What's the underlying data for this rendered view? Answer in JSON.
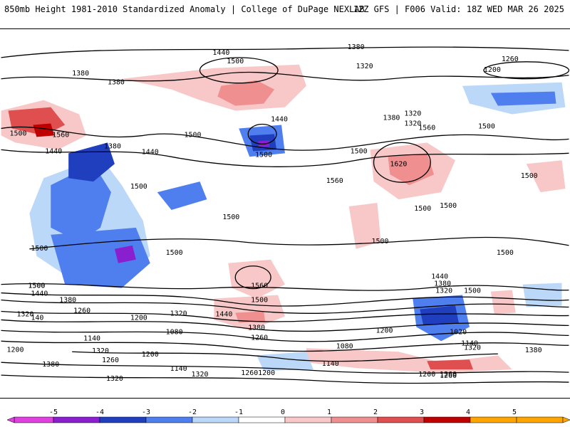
{
  "header": {
    "left": "850mb Height 1981-2010 Standardized Anomaly | College of DuPage NEXLAB",
    "right": "12Z GFS | F006 Valid: 18Z WED MAR 26 2025"
  },
  "map": {
    "contour_labels": [
      "1440",
      "1500",
      "1380",
      "1320",
      "1260",
      "1200",
      "1380",
      "1500",
      "1560",
      "1440",
      "1380",
      "1500",
      "1440",
      "1500",
      "1320",
      "1380",
      "1560",
      "1440",
      "1380",
      "1320",
      "1620",
      "1500",
      "1500",
      "1500",
      "1560",
      "1500",
      "1500",
      "1500",
      "1500",
      "1500",
      "1500",
      "1500",
      "1500",
      "1380",
      "1440",
      "1320",
      "1560",
      "1500",
      "1500",
      "1440",
      "1380",
      "1320",
      "1260",
      "1500",
      "1500",
      "1440",
      "1380",
      "1260",
      "1200",
      "1320",
      "140",
      "1080",
      "1200",
      "1140",
      "1320",
      "1200",
      "1260",
      "1140",
      "1200",
      "1080",
      "1140",
      "1320",
      "1380",
      "1320",
      "1260",
      "1200",
      "1140",
      "1020",
      "1260",
      "1380",
      "1200",
      "1320",
      "1260"
    ],
    "colors": {
      "neg5": "#e040e0",
      "neg4": "#8a1fcf",
      "neg3": "#1f3fbf",
      "neg2": "#4f7fef",
      "neg1": "#bcd8f8",
      "pos1": "#f8c8c8",
      "pos2": "#ef8f8f",
      "pos3": "#df4f4f",
      "pos4": "#bf0000",
      "pos5": "#ffa500"
    }
  },
  "colorbar": {
    "ticks": [
      "-5",
      "-4",
      "-3",
      "-2",
      "-1",
      "0",
      "1",
      "2",
      "3",
      "4",
      "5"
    ]
  }
}
